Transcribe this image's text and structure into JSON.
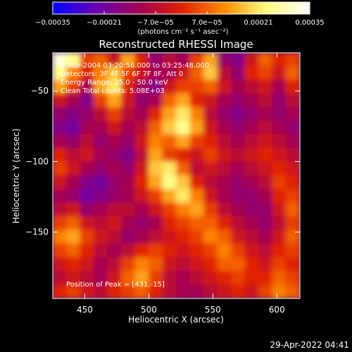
{
  "chart_data": {
    "type": "heatmap",
    "title": "Reconstructed RHESSI Image",
    "xlabel": "Heliocentric X (arcsec)",
    "ylabel": "Heliocentric Y (arcsec)",
    "xlim": [
      425,
      618
    ],
    "ylim": [
      -197,
      -23
    ],
    "xticks": [
      450,
      500,
      550,
      600
    ],
    "xtick_labels": [
      "450",
      "500",
      "550",
      "600"
    ],
    "yticks": [
      -50,
      -100,
      -150
    ],
    "ytick_labels": [
      "−50",
      "−100",
      "−150"
    ],
    "colorbar": {
      "range": [
        -0.00035,
        0.00035
      ],
      "ticks": [
        -0.00035,
        -0.00021,
        -7e-05,
        7e-05,
        0.00021,
        0.00035
      ],
      "tick_labels": [
        "−0.00035",
        "−0.00021",
        "−7.0e−05",
        "7.0e−05",
        "0.00021",
        "0.00035"
      ],
      "unit_label": "(photons cm⁻² s⁻¹ asec⁻²)",
      "colors": [
        "#0000ff",
        "#6a00b0",
        "#a0005a",
        "#e02000",
        "#ff8c00",
        "#ffff80",
        "#ffffff"
      ]
    },
    "info_lines": [
      "5-Mar-2004 03:20:56.000 to 03:25:48.000",
      "Detectors: 3F 4F 5F 6F 7F 8F, Att 0",
      "Energy Range: 25.0 - 50.0 keV",
      "Clean     Total counts: 5.08E+03"
    ],
    "peak_label": "Position of Peak = [431,-15]",
    "grid": false,
    "grid_values": [
      [
        0.95,
        0.85,
        0.55,
        0.6,
        0.45,
        0.7,
        0.5,
        0.3,
        0.4,
        0.35,
        0.55,
        0.7,
        0.3,
        0.25,
        0.45,
        0.6,
        0.5,
        0.55
      ],
      [
        0.85,
        0.65,
        0.5,
        0.65,
        0.75,
        0.55,
        0.45,
        0.35,
        0.35,
        0.45,
        0.6,
        0.75,
        0.4,
        0.3,
        0.5,
        0.55,
        0.45,
        0.6
      ],
      [
        0.7,
        0.55,
        0.35,
        0.7,
        0.8,
        0.5,
        0.35,
        0.25,
        0.45,
        0.55,
        0.55,
        0.6,
        0.45,
        0.35,
        0.4,
        0.45,
        0.35,
        0.5
      ],
      [
        0.45,
        0.35,
        0.25,
        0.55,
        0.7,
        0.45,
        0.3,
        0.35,
        0.6,
        0.7,
        0.5,
        0.45,
        0.35,
        0.3,
        0.35,
        0.4,
        0.3,
        0.4
      ],
      [
        0.3,
        0.25,
        0.3,
        0.4,
        0.55,
        0.4,
        0.35,
        0.5,
        0.7,
        0.8,
        0.65,
        0.4,
        0.3,
        0.25,
        0.3,
        0.35,
        0.3,
        0.35
      ],
      [
        0.25,
        0.2,
        0.35,
        0.35,
        0.45,
        0.35,
        0.4,
        0.6,
        0.75,
        0.85,
        0.7,
        0.45,
        0.35,
        0.3,
        0.35,
        0.4,
        0.35,
        0.3
      ],
      [
        0.35,
        0.3,
        0.4,
        0.3,
        0.35,
        0.3,
        0.45,
        0.65,
        0.6,
        0.7,
        0.55,
        0.5,
        0.4,
        0.35,
        0.4,
        0.45,
        0.4,
        0.35
      ],
      [
        0.5,
        0.4,
        0.45,
        0.35,
        0.3,
        0.25,
        0.4,
        0.7,
        0.55,
        0.5,
        0.45,
        0.55,
        0.45,
        0.4,
        0.45,
        0.5,
        0.45,
        0.4
      ],
      [
        0.55,
        0.45,
        0.35,
        0.3,
        0.35,
        0.3,
        0.45,
        0.75,
        0.8,
        0.6,
        0.4,
        0.45,
        0.4,
        0.35,
        0.4,
        0.45,
        0.5,
        0.45
      ],
      [
        0.45,
        0.35,
        0.25,
        0.2,
        0.3,
        0.35,
        0.5,
        0.7,
        0.85,
        0.75,
        0.5,
        0.4,
        0.35,
        0.3,
        0.35,
        0.4,
        0.55,
        0.5
      ],
      [
        0.35,
        0.3,
        0.2,
        0.25,
        0.3,
        0.35,
        0.45,
        0.55,
        0.7,
        0.8,
        0.65,
        0.45,
        0.35,
        0.3,
        0.3,
        0.35,
        0.5,
        0.55
      ],
      [
        0.4,
        0.45,
        0.3,
        0.35,
        0.4,
        0.4,
        0.35,
        0.45,
        0.55,
        0.65,
        0.7,
        0.55,
        0.4,
        0.35,
        0.3,
        0.3,
        0.45,
        0.6
      ],
      [
        0.55,
        0.6,
        0.45,
        0.4,
        0.45,
        0.35,
        0.3,
        0.35,
        0.5,
        0.55,
        0.6,
        0.6,
        0.5,
        0.4,
        0.35,
        0.3,
        0.4,
        0.55
      ],
      [
        0.65,
        0.7,
        0.55,
        0.45,
        0.4,
        0.3,
        0.35,
        0.4,
        0.45,
        0.5,
        0.55,
        0.65,
        0.6,
        0.45,
        0.4,
        0.35,
        0.45,
        0.6
      ],
      [
        0.55,
        0.6,
        0.5,
        0.4,
        0.35,
        0.4,
        0.5,
        0.55,
        0.5,
        0.45,
        0.5,
        0.55,
        0.65,
        0.55,
        0.45,
        0.4,
        0.5,
        0.55
      ],
      [
        0.45,
        0.5,
        0.45,
        0.35,
        0.4,
        0.55,
        0.65,
        0.6,
        0.45,
        0.4,
        0.45,
        0.5,
        0.6,
        0.6,
        0.5,
        0.45,
        0.55,
        0.5
      ],
      [
        0.4,
        0.45,
        0.4,
        0.35,
        0.45,
        0.6,
        0.7,
        0.55,
        0.4,
        0.35,
        0.4,
        0.45,
        0.5,
        0.55,
        0.5,
        0.5,
        0.6,
        0.55
      ],
      [
        0.5,
        0.55,
        0.45,
        0.4,
        0.5,
        0.55,
        0.6,
        0.5,
        0.4,
        0.35,
        0.35,
        0.4,
        0.45,
        0.5,
        0.45,
        0.55,
        0.65,
        0.6
      ]
    ]
  },
  "footer": {
    "date_stamp": "29-Apr-2022 04:41"
  }
}
